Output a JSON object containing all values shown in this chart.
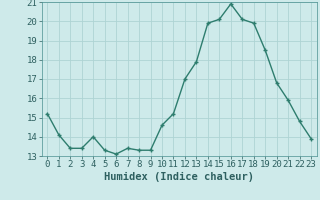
{
  "x": [
    0,
    1,
    2,
    3,
    4,
    5,
    6,
    7,
    8,
    9,
    10,
    11,
    12,
    13,
    14,
    15,
    16,
    17,
    18,
    19,
    20,
    21,
    22,
    23
  ],
  "y": [
    15.2,
    14.1,
    13.4,
    13.4,
    14.0,
    13.3,
    13.1,
    13.4,
    13.3,
    13.3,
    14.6,
    15.2,
    17.0,
    17.9,
    19.9,
    20.1,
    20.9,
    20.1,
    19.9,
    18.5,
    16.8,
    15.9,
    14.8,
    13.9
  ],
  "line_color": "#2e7d6e",
  "marker": "+",
  "marker_size": 3,
  "marker_linewidth": 1.0,
  "bg_color": "#ceeaea",
  "grid_color": "#aed4d4",
  "xlabel": "Humidex (Indice chaleur)",
  "ylim": [
    13,
    21
  ],
  "xlim": [
    -0.5,
    23.5
  ],
  "yticks": [
    13,
    14,
    15,
    16,
    17,
    18,
    19,
    20,
    21
  ],
  "xticks": [
    0,
    1,
    2,
    3,
    4,
    5,
    6,
    7,
    8,
    9,
    10,
    11,
    12,
    13,
    14,
    15,
    16,
    17,
    18,
    19,
    20,
    21,
    22,
    23
  ],
  "tick_label_fontsize": 6.5,
  "xlabel_fontsize": 7.5,
  "linewidth": 1.0
}
